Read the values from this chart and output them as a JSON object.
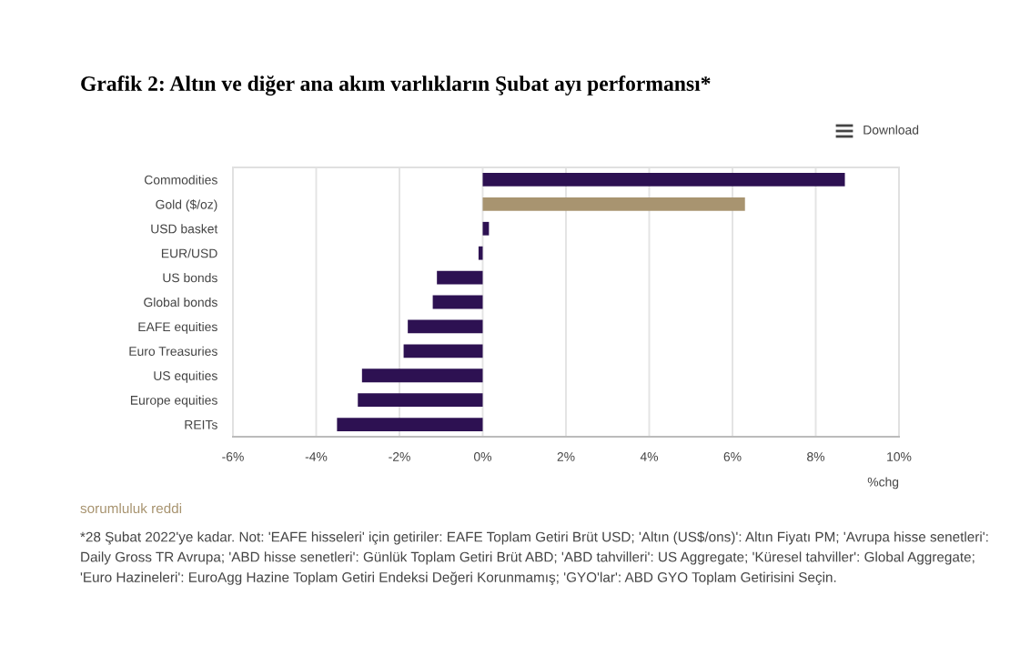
{
  "chart_data": {
    "type": "bar",
    "orientation": "horizontal",
    "title": "Grafik 2: Altın ve diğer ana akım varlıkların Şubat ayı performansı*",
    "xlabel": "%chg",
    "categories": [
      "Commodities",
      "Gold ($/oz)",
      "USD basket",
      "EUR/USD",
      "US bonds",
      "Global bonds",
      "EAFE equities",
      "Euro Treasuries",
      "US equities",
      "Europe equities",
      "REITs"
    ],
    "values": [
      8.7,
      6.3,
      0.15,
      -0.1,
      -1.1,
      -1.2,
      -1.8,
      -1.9,
      -2.9,
      -3.0,
      -3.5
    ],
    "colors": [
      "#2d1152",
      "#a89470",
      "#2d1152",
      "#2d1152",
      "#2d1152",
      "#2d1152",
      "#2d1152",
      "#2d1152",
      "#2d1152",
      "#2d1152",
      "#2d1152"
    ],
    "xlim": [
      -6,
      10
    ],
    "xticks": [
      {
        "value": -6,
        "label": "-6%"
      },
      {
        "value": -4,
        "label": "-4%"
      },
      {
        "value": -2,
        "label": "-2%"
      },
      {
        "value": 0,
        "label": "0%"
      },
      {
        "value": 2,
        "label": "2%"
      },
      {
        "value": 4,
        "label": "4%"
      },
      {
        "value": 6,
        "label": "6%"
      },
      {
        "value": 8,
        "label": "8%"
      },
      {
        "value": 10,
        "label": "10%"
      }
    ],
    "grid": "x",
    "annotations": [
      "Download",
      "sorumluluk reddi",
      "*28 Şubat 2022'ye kadar. Not: 'EAFE hisseleri' için getiriler: EAFE Toplam Getiri Brüt USD; 'Altın (US$/ons)': Altın Fiyatı PM; 'Avrupa hisse senetleri': Daily Gross TR Avrupa; 'ABD hisse senetleri': Günlük Toplam Getiri Brüt ABD; 'ABD tahvilleri': US Aggregate; 'Küresel tahviller': Global Aggregate; 'Euro Hazineleri': EuroAgg Hazine Toplam Getiri Endeksi Değeri Korunmamış; 'GYO'lar': ABD GYO Toplam Getirisini Seçin."
    ]
  }
}
